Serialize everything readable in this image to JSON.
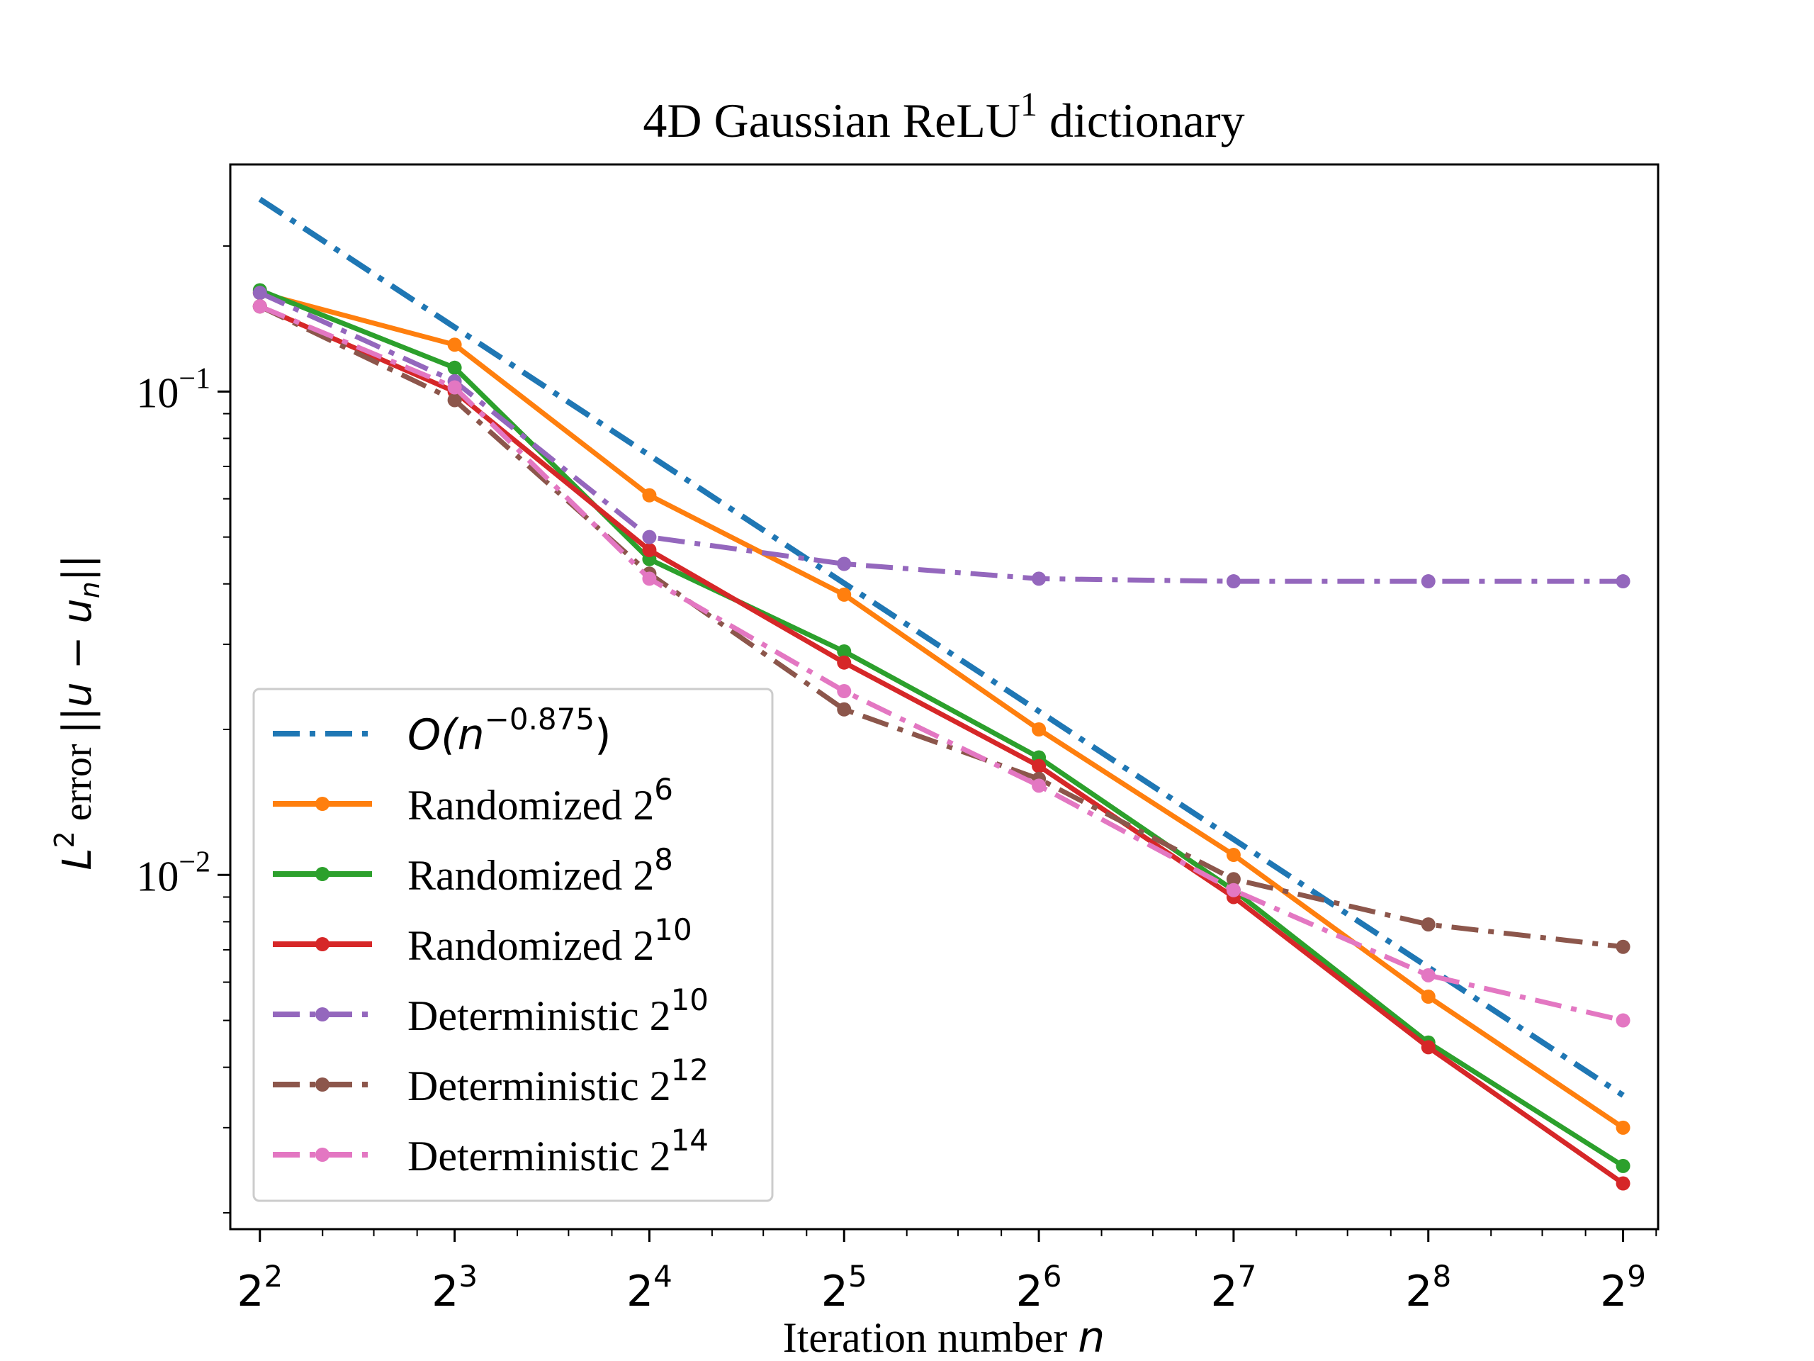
{
  "chart_data": {
    "type": "line",
    "title": "4D Gaussian   ReLU",
    "title_sup": "1",
    "title_suffix": " dictionary",
    "xlabel": "Iteration number ",
    "xlabel_var": "n",
    "ylabel": "L",
    "ylabel_sup": "2",
    "ylabel_rest": " error ",
    "ylabel_math": "||u − u",
    "ylabel_sub": "n",
    "ylabel_end": "||",
    "x_scale": "log2",
    "y_scale": "log10",
    "xlim": [
      3.6,
      580
    ],
    "ylim": [
      0.00185,
      0.295
    ],
    "x_ticks": [
      {
        "value": 4,
        "base": "2",
        "exp": "2"
      },
      {
        "value": 8,
        "base": "2",
        "exp": "3"
      },
      {
        "value": 16,
        "base": "2",
        "exp": "4"
      },
      {
        "value": 32,
        "base": "2",
        "exp": "5"
      },
      {
        "value": 64,
        "base": "2",
        "exp": "6"
      },
      {
        "value": 128,
        "base": "2",
        "exp": "7"
      },
      {
        "value": 256,
        "base": "2",
        "exp": "8"
      },
      {
        "value": 512,
        "base": "2",
        "exp": "9"
      }
    ],
    "y_ticks": [
      {
        "value": 0.1,
        "base": "10",
        "exp": "−1"
      },
      {
        "value": 0.01,
        "base": "10",
        "exp": "−2"
      }
    ],
    "grid": false,
    "legend_position": "lower-left",
    "x": [
      4,
      8,
      16,
      32,
      64,
      128,
      256,
      512
    ],
    "series": [
      {
        "name": "O(n",
        "name_sup": "−0.875",
        "name_end": ")",
        "color": "#1f77b4",
        "style": "dashdot",
        "markers": false,
        "x": [
          4,
          512
        ],
        "values": [
          0.25,
          0.0035
        ]
      },
      {
        "name": "Randomized 2",
        "name_sup": "6",
        "color": "#ff7f0e",
        "style": "solid",
        "markers": true,
        "values": [
          0.16,
          0.125,
          0.061,
          0.038,
          0.02,
          0.011,
          0.0056,
          0.003
        ]
      },
      {
        "name": "Randomized 2",
        "name_sup": "8",
        "color": "#2ca02c",
        "style": "solid",
        "markers": true,
        "values": [
          0.162,
          0.112,
          0.045,
          0.029,
          0.0175,
          0.0093,
          0.0045,
          0.0025
        ]
      },
      {
        "name": "Randomized 2",
        "name_sup": "10",
        "color": "#d62728",
        "style": "solid",
        "markers": true,
        "values": [
          0.15,
          0.1,
          0.047,
          0.0275,
          0.0168,
          0.009,
          0.0044,
          0.0023
        ]
      },
      {
        "name": "Deterministic 2",
        "name_sup": "10",
        "color": "#9467bd",
        "style": "dashdot",
        "markers": true,
        "values": [
          0.16,
          0.105,
          0.05,
          0.044,
          0.041,
          0.0405,
          0.0405,
          0.0405
        ]
      },
      {
        "name": "Deterministic 2",
        "name_sup": "12",
        "color": "#8c564b",
        "style": "dashdot",
        "markers": true,
        "values": [
          0.15,
          0.096,
          0.042,
          0.022,
          0.0158,
          0.0098,
          0.0079,
          0.0071
        ]
      },
      {
        "name": "Deterministic 2",
        "name_sup": "14",
        "color": "#e377c2",
        "style": "dashdot",
        "markers": true,
        "values": [
          0.15,
          0.102,
          0.041,
          0.024,
          0.0153,
          0.0093,
          0.0062,
          0.005
        ]
      }
    ]
  }
}
